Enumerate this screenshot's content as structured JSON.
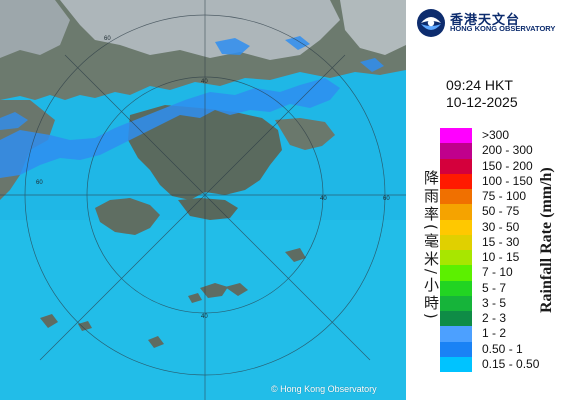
{
  "map": {
    "copyright": "© Hong Kong Observatory",
    "range_ring_labels": [
      "60",
      "60",
      "60",
      "40",
      "40",
      "40"
    ],
    "sea_color": "#1fb7e6",
    "land_color": "#6e7a70",
    "cloud_color": "#b9c2c9",
    "radar_echo_color": "#2f8ef0"
  },
  "header": {
    "org_name_zh": "香港天文台",
    "org_name_en": "HONG KONG OBSERVATORY",
    "logo_icon": "hko-logo-icon"
  },
  "timestamp": {
    "time": "09:24 HKT",
    "date": "10-12-2025"
  },
  "legend": {
    "title_zh": "降雨率(毫米/小時)",
    "title_en": "Rainfall Rate (mm/h)",
    "items": [
      {
        "label": ">300",
        "color": "#ff00ff"
      },
      {
        "label": "200 - 300",
        "color": "#c0008c"
      },
      {
        "label": "150 - 200",
        "color": "#d4003c"
      },
      {
        "label": "100 - 150",
        "color": "#ff1a00"
      },
      {
        "label": "75 - 100",
        "color": "#f07000"
      },
      {
        "label": "50 - 75",
        "color": "#f5a300"
      },
      {
        "label": "30 - 50",
        "color": "#ffc800"
      },
      {
        "label": "15 - 30",
        "color": "#e0d000"
      },
      {
        "label": "10 - 15",
        "color": "#a8e600"
      },
      {
        "label": "7 - 10",
        "color": "#5cf000"
      },
      {
        "label": "5 - 7",
        "color": "#22d422"
      },
      {
        "label": "3 - 5",
        "color": "#16b43a"
      },
      {
        "label": "2 - 3",
        "color": "#0f8c46"
      },
      {
        "label": "1 - 2",
        "color": "#4ca0ff"
      },
      {
        "label": "0.50 - 1",
        "color": "#1a82f5"
      },
      {
        "label": "0.15 - 0.50",
        "color": "#00c3ff"
      }
    ]
  }
}
